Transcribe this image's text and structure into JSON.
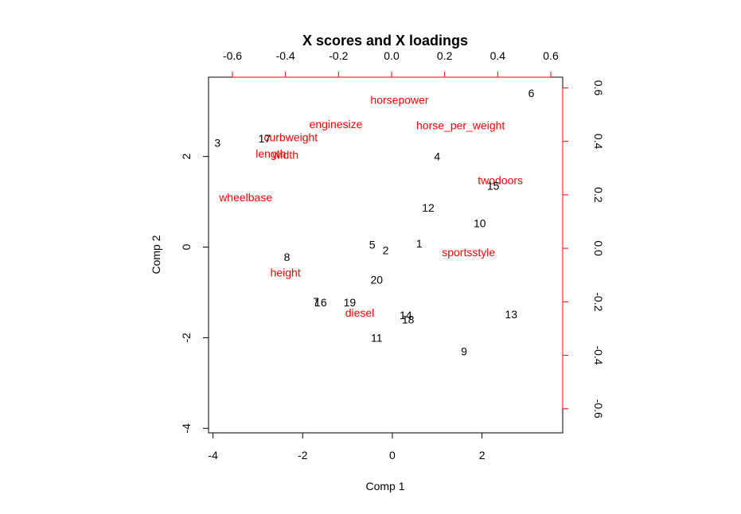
{
  "chart_data": {
    "type": "scatter",
    "subtype": "biplot",
    "title": "X scores and X loadings",
    "xlabel": "Comp 1",
    "ylabel": "Comp 2",
    "xlim": [
      -4.1,
      3.8
    ],
    "ylim": [
      -4.1,
      3.75
    ],
    "x_ticks": [
      -4,
      -2,
      0,
      2
    ],
    "x_tick_labels": [
      "-4",
      "-2",
      "0",
      "2"
    ],
    "y_ticks": [
      -4,
      -2,
      0,
      2
    ],
    "y_tick_labels": [
      "-4",
      "-2",
      "0",
      "2"
    ],
    "loading_xlim": [
      -0.69,
      0.645
    ],
    "loading_ylim": [
      -0.69,
      0.64
    ],
    "top_ticks": [
      -0.6,
      -0.4,
      -0.2,
      0.0,
      0.2,
      0.4,
      0.6
    ],
    "top_tick_labels": [
      "-0.6",
      "-0.4",
      "-0.2",
      "0.0",
      "0.2",
      "0.4",
      "0.6"
    ],
    "right_ticks": [
      -0.6,
      -0.4,
      -0.2,
      0.0,
      0.2,
      0.4,
      0.6
    ],
    "right_tick_labels": [
      "-0.6",
      "-0.4",
      "-0.2",
      "0.0",
      "0.2",
      "0.4",
      "0.6"
    ],
    "secondary_axis_color": "#ff0000",
    "grid": false,
    "scores": [
      {
        "label": "1",
        "x": 0.6,
        "y": 0.08
      },
      {
        "label": "2",
        "x": -0.15,
        "y": -0.07
      },
      {
        "label": "3",
        "x": -3.9,
        "y": 2.3
      },
      {
        "label": "4",
        "x": 1.0,
        "y": 2.0
      },
      {
        "label": "5",
        "x": -0.45,
        "y": 0.05
      },
      {
        "label": "6",
        "x": 3.1,
        "y": 3.4
      },
      {
        "label": "7",
        "x": -1.7,
        "y": -1.2
      },
      {
        "label": "8",
        "x": -2.35,
        "y": -0.22
      },
      {
        "label": "9",
        "x": 1.6,
        "y": -2.3
      },
      {
        "label": "10",
        "x": 1.95,
        "y": 0.53
      },
      {
        "label": "11",
        "x": -0.35,
        "y": -2.0
      },
      {
        "label": "12",
        "x": 0.8,
        "y": 0.87
      },
      {
        "label": "13",
        "x": 2.65,
        "y": -1.48
      },
      {
        "label": "14",
        "x": 0.3,
        "y": -1.5
      },
      {
        "label": "15",
        "x": 2.25,
        "y": 1.35
      },
      {
        "label": "16",
        "x": -1.6,
        "y": -1.22
      },
      {
        "label": "17",
        "x": -2.85,
        "y": 2.4
      },
      {
        "label": "18",
        "x": 0.35,
        "y": -1.6
      },
      {
        "label": "19",
        "x": -0.95,
        "y": -1.22
      },
      {
        "label": "20",
        "x": -0.35,
        "y": -0.72
      }
    ],
    "loadings": [
      {
        "label": "horsepower",
        "x": 0.03,
        "y": 0.555
      },
      {
        "label": "enginesize",
        "x": -0.21,
        "y": 0.465
      },
      {
        "label": "horse_per_weight",
        "x": 0.26,
        "y": 0.46
      },
      {
        "label": "curbweight",
        "x": -0.38,
        "y": 0.415
      },
      {
        "label": "length",
        "x": -0.455,
        "y": 0.355
      },
      {
        "label": "width",
        "x": -0.4,
        "y": 0.35
      },
      {
        "label": "twodoors",
        "x": 0.41,
        "y": 0.255
      },
      {
        "label": "wheelbase",
        "x": -0.55,
        "y": 0.19
      },
      {
        "label": "sportsstyle",
        "x": 0.29,
        "y": -0.015
      },
      {
        "label": "height",
        "x": -0.4,
        "y": -0.09
      },
      {
        "label": "diesel",
        "x": -0.12,
        "y": -0.24
      }
    ]
  }
}
